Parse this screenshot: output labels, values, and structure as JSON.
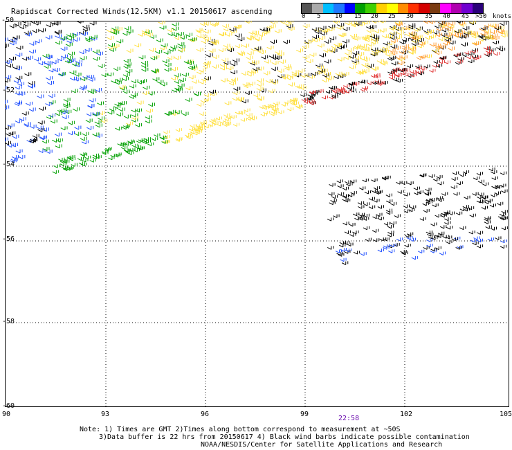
{
  "title": "Rapidscat Corrected Winds(12.5KM) v1.1 20150617 ascending",
  "legend": {
    "unit": "knots",
    "labels": [
      "0",
      "5",
      "10",
      "15",
      "20",
      "25",
      "30",
      "35",
      "40",
      "45",
      ">50"
    ],
    "colors": [
      "#555555",
      "#aaaaaa",
      "#00bfff",
      "#1f78ff",
      "#0000ff",
      "#00a000",
      "#40d000",
      "#ffd000",
      "#ffff00",
      "#ff8c00",
      "#ff3000",
      "#d40000",
      "#7a3a10",
      "#ff00ff",
      "#b000b0",
      "#7000d0",
      "#2a007a"
    ]
  },
  "map": {
    "lat_labels": [
      "-52",
      "-54",
      "-56",
      "-58",
      "-60"
    ],
    "lon_labels": [
      "90",
      "93",
      "96",
      "99",
      "102",
      "105"
    ],
    "top_left_lat": "-50",
    "time_label": "22:58"
  },
  "notes": {
    "line1": "Note: 1) Times are GMT 2)Times along bottom correspond to measurement at ~50S",
    "line2": "3)Data buffer is 22 hrs from 20150617 4) Black wind barbs indicate possible contamination",
    "line3": "NOAA/NESDIS/Center for Satellite Applications and Research"
  },
  "barb_colors": {
    "black": "#000000",
    "blue": "#1f4fff",
    "green": "#00a000",
    "yellow": "#ffe040",
    "orange": "#ff9a30",
    "red": "#e03030"
  }
}
